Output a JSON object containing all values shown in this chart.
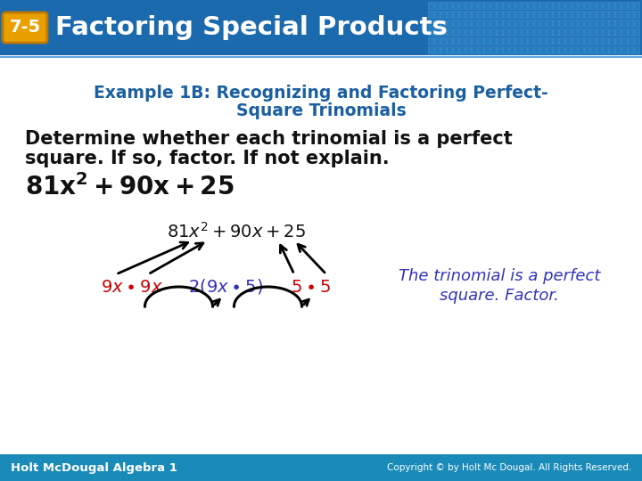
{
  "bg_color": "#ffffff",
  "header_bg_color": "#1a6aad",
  "header_text": "Factoring Special Products",
  "badge_text": "7-5",
  "badge_bg": "#e8a000",
  "example_title_line1": "Example 1B: Recognizing and Factoring Perfect-",
  "example_title_line2": "Square Trinomials",
  "example_title_color": "#1a5fa0",
  "body_line1": "Determine whether each trinomial is a perfect",
  "body_line2": "square. If so, factor. If not explain.",
  "red_color": "#cc0000",
  "blue_color": "#3333bb",
  "black_color": "#111111",
  "footer_bg_top": "#2a9fd0",
  "footer_bg_bot": "#1a7aaa",
  "footer_left": "Holt McDougal Algebra 1",
  "footer_right": "Copyright © by Holt Mc Dougal. All Rights Reserved.",
  "note_color": "#3333bb",
  "note_text_line1": "The trinomial is a perfect",
  "note_text_line2": "square. Factor."
}
